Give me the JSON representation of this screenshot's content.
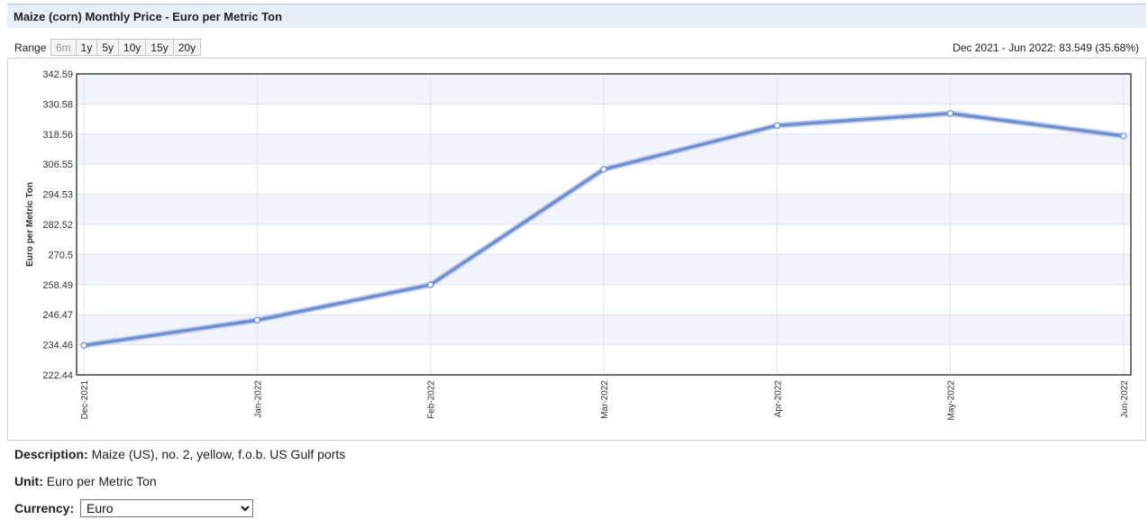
{
  "header": {
    "title": "Maize (corn) Monthly Price - Euro per Metric Ton"
  },
  "range": {
    "label": "Range",
    "buttons": [
      "6m",
      "1y",
      "5y",
      "10y",
      "15y",
      "20y"
    ],
    "active": "6m",
    "summary": "Dec 2021 - Jun 2022: 83.549 (35.68%)"
  },
  "chart_data": {
    "type": "line",
    "title": "",
    "xlabel": "",
    "ylabel": "Euro per Metric Ton",
    "categories": [
      "Dec-2021",
      "Jan-2022",
      "Feb-2022",
      "Mar-2022",
      "Apr-2022",
      "May-2022",
      "Jun-2022"
    ],
    "series": [
      {
        "values": [
          234.2,
          244.3,
          258.4,
          304.5,
          322.0,
          326.8,
          317.8
        ]
      }
    ],
    "yticks": [
      "342.59",
      "330.58",
      "318.56",
      "306.55",
      "294.53",
      "282.52",
      "270.5",
      "258.49",
      "246.47",
      "234.46",
      "222.44"
    ],
    "ylim": [
      222.44,
      342.59
    ],
    "grid": true,
    "colors": {
      "line": "#6f8fd0",
      "band": "#f2f4fb",
      "grid": "#dde3f0"
    }
  },
  "info": {
    "description_label": "Description:",
    "description_value": "Maize (US), no. 2, yellow, f.o.b. US Gulf ports",
    "unit_label": "Unit:",
    "unit_value": "Euro per Metric Ton",
    "currency_label": "Currency:",
    "currency_value": "Euro"
  }
}
